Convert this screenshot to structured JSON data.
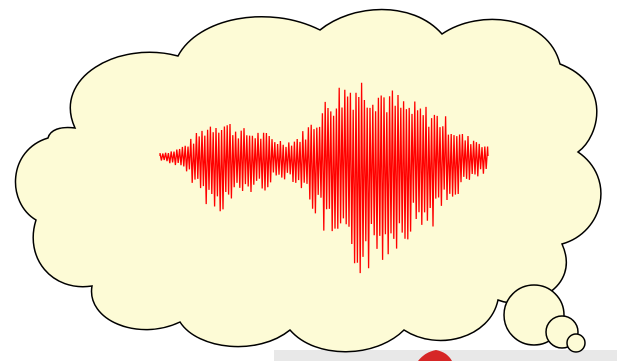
{
  "cloud": {
    "fill_color": "#fdfbd6",
    "outline_color": "#000000"
  },
  "waveform": {
    "color": "#ff0000",
    "icon": "speech-waveform"
  },
  "corner_image": {
    "colors": [
      "#e8e8e8",
      "#d62626"
    ]
  }
}
